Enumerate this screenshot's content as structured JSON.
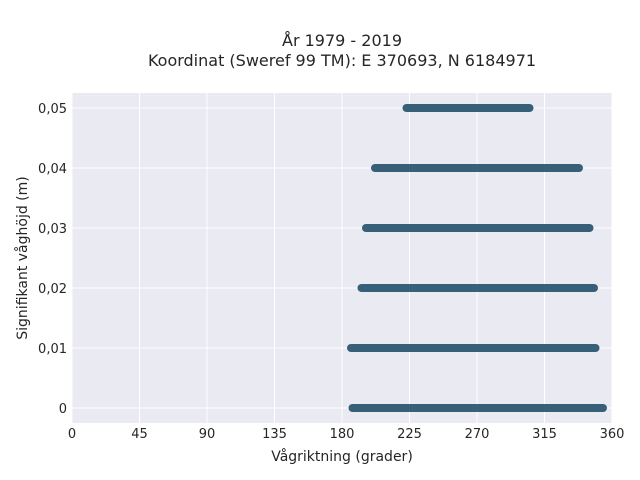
{
  "chart_data": {
    "type": "scatter",
    "title_line1": "År 1979 - 2019",
    "title_line2": "Koordinat (Sweref 99 TM): E 370693, N 6184971",
    "xlabel": "Vågriktning (grader)",
    "ylabel": "Signifikant våghöjd (m)",
    "xlim": [
      0,
      360
    ],
    "ylim": [
      -0.0025,
      0.0525
    ],
    "x_ticks": [
      0,
      45,
      90,
      135,
      180,
      225,
      270,
      315,
      360
    ],
    "x_tick_labels": [
      "0",
      "45",
      "90",
      "135",
      "180",
      "225",
      "270",
      "315",
      "360"
    ],
    "y_ticks": [
      0,
      0.01,
      0.02,
      0.03,
      0.04,
      0.05
    ],
    "y_tick_labels": [
      "0",
      "0,01",
      "0,02",
      "0,03",
      "0,04",
      "0,05"
    ],
    "grid": true,
    "point_color": "#2f5872",
    "plot_bg": "#eaeaf2",
    "bands": [
      {
        "y": 0.05,
        "x_min": 223,
        "x_max": 305
      },
      {
        "y": 0.04,
        "x_min": 202,
        "x_max": 338
      },
      {
        "y": 0.03,
        "x_min": 196,
        "x_max": 345
      },
      {
        "y": 0.02,
        "x_min": 193,
        "x_max": 348
      },
      {
        "y": 0.01,
        "x_min": 186,
        "x_max": 349
      },
      {
        "y": 0.0,
        "x_min": 187,
        "x_max": 354
      }
    ]
  }
}
